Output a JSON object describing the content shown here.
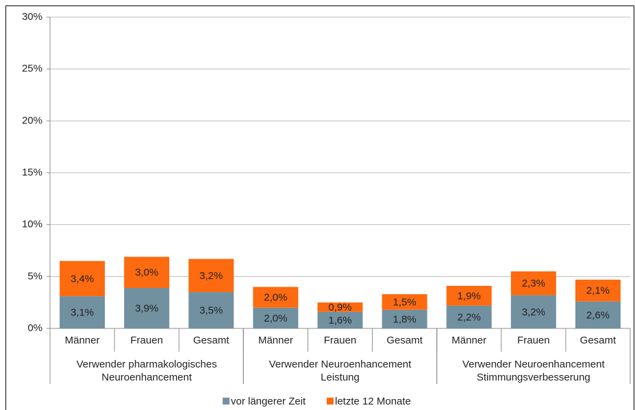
{
  "chart_data": {
    "type": "stacked_bar",
    "categories": [
      "Männer",
      "Frauen",
      "Gesamt",
      "Männer",
      "Frauen",
      "Gesamt",
      "Männer",
      "Frauen",
      "Gesamt"
    ],
    "groups": [
      [
        "Verwender pharmakologisches",
        "Neuroenhancement"
      ],
      [
        "Verwender Neuroenhancement",
        "Leistung"
      ],
      [
        "Verwender Neuroenhancement",
        "Stimmungsverbesserung"
      ]
    ],
    "series": [
      {
        "name": "vor längerer Zeit",
        "color": "#7191a1",
        "values": [
          3.1,
          3.9,
          3.5,
          2.0,
          1.6,
          1.8,
          2.2,
          3.2,
          2.6
        ],
        "value_labels": [
          "3,1%",
          "3,9%",
          "3,5%",
          "2,0%",
          "1,6%",
          "1,8%",
          "2,2%",
          "3,2%",
          "2,6%"
        ]
      },
      {
        "name": "letzte 12 Monate",
        "color": "#fd6a0f",
        "values": [
          3.4,
          3.0,
          3.2,
          2.0,
          0.9,
          1.5,
          1.9,
          2.3,
          2.1
        ],
        "value_labels": [
          "3,4%",
          "3,0%",
          "3,2%",
          "2,0%",
          "0,9%",
          "1,5%",
          "1,9%",
          "2,3%",
          "2,1%"
        ]
      }
    ],
    "ylim": [
      0,
      30
    ],
    "yticks": [
      {
        "value": 0,
        "label": "0%"
      },
      {
        "value": 5,
        "label": "5%"
      },
      {
        "value": 10,
        "label": "10%"
      },
      {
        "value": 15,
        "label": "15%"
      },
      {
        "value": 20,
        "label": "20%"
      },
      {
        "value": 25,
        "label": "25%"
      },
      {
        "value": 30,
        "label": "30%"
      }
    ],
    "grid": true,
    "legend": "bottom"
  }
}
